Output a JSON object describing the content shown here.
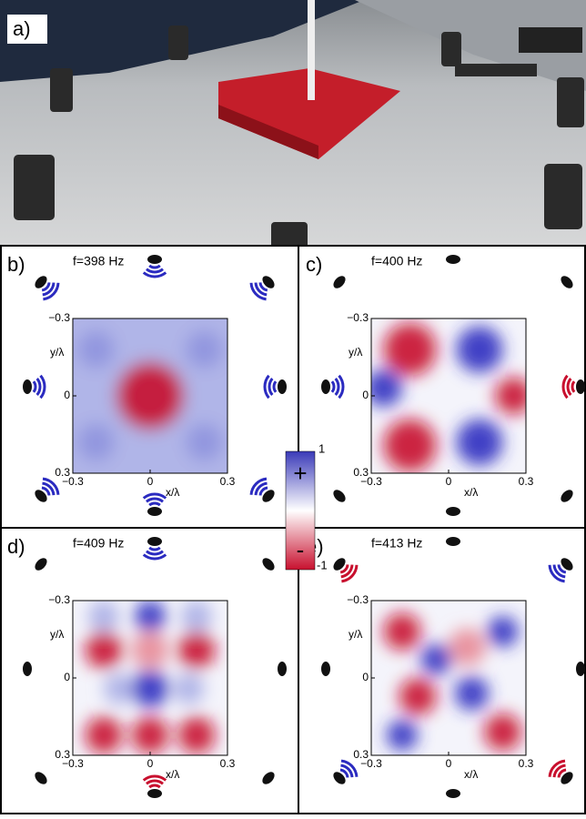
{
  "panels": [
    {
      "label": "a)"
    },
    {
      "label": "b)",
      "frequency": "f=398 Hz",
      "y_axis_label": "y/λ",
      "x_axis_label": "x/λ",
      "y_ticks": [
        "−0.3",
        "0",
        "0.3"
      ],
      "x_ticks": [
        "−0.3",
        "0",
        "0.3"
      ]
    },
    {
      "label": "c)",
      "frequency": "f=400 Hz",
      "y_axis_label": "y/λ",
      "x_axis_label": "x/λ",
      "y_ticks": [
        "−0.3",
        "0",
        "0.3"
      ],
      "x_ticks": [
        "−0.3",
        "0",
        "0.3"
      ]
    },
    {
      "label": "d)",
      "frequency": "f=409 Hz",
      "y_axis_label": "y/λ",
      "x_axis_label": "x/λ",
      "y_ticks": [
        "−0.3",
        "0",
        "0.3"
      ],
      "x_ticks": [
        "−0.3",
        "0",
        "0.3"
      ]
    },
    {
      "label": "e)",
      "frequency": "f=413 Hz",
      "y_axis_label": "y/λ",
      "x_axis_label": "x/λ",
      "y_ticks": [
        "−0.3",
        "0",
        "0.3"
      ],
      "x_ticks": [
        "−0.3",
        "0",
        "0.3"
      ]
    }
  ],
  "colorbar": {
    "max_label": "1",
    "min_label": "-1",
    "plus_sign": "+",
    "minus_sign": "-"
  }
}
